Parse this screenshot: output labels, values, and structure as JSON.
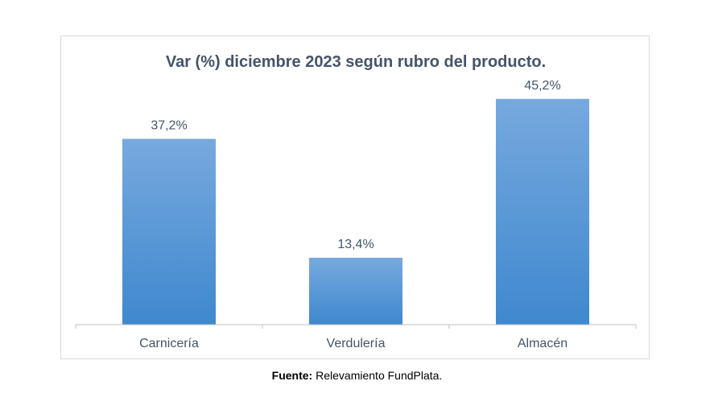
{
  "chart_data": {
    "type": "bar",
    "title": "Var (%) diciembre 2023 según rubro del producto.",
    "categories": [
      "Carnicería",
      "Verdulería",
      "Almacén"
    ],
    "values": [
      37.2,
      13.4,
      45.2
    ],
    "value_labels": [
      "37,2%",
      "13,4%",
      "45,2%"
    ],
    "xlabel": "",
    "ylabel": "",
    "ylim": [
      0,
      50
    ],
    "grid": false,
    "legend": "none",
    "bar_color_top": "#77a9de",
    "bar_color_bottom": "#3f88cf",
    "text_color": "#44546a"
  },
  "footer": {
    "source_label": "Fuente:",
    "source_text": " Relevamiento FundPlata."
  }
}
